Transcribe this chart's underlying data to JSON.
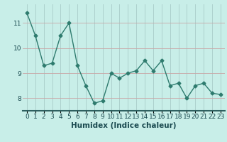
{
  "x": [
    0,
    1,
    2,
    3,
    4,
    5,
    6,
    7,
    8,
    9,
    10,
    11,
    12,
    13,
    14,
    15,
    16,
    17,
    18,
    19,
    20,
    21,
    22,
    23
  ],
  "y": [
    11.4,
    10.5,
    9.3,
    9.4,
    10.5,
    11.0,
    9.3,
    8.5,
    7.8,
    7.9,
    9.0,
    8.8,
    9.0,
    9.1,
    9.5,
    9.1,
    9.5,
    8.5,
    8.6,
    8.0,
    8.5,
    8.6,
    8.2,
    8.15
  ],
  "line_color": "#2e7b6e",
  "marker": "D",
  "marker_size": 2.5,
  "line_width": 1.0,
  "background_color": "#c8eee8",
  "grid_color_h": "#c8a8a8",
  "grid_color_v": "#a8ccc8",
  "xlabel": "Humidex (Indice chaleur)",
  "ylim": [
    7.5,
    11.75
  ],
  "yticks": [
    8,
    9,
    10,
    11
  ],
  "xticks": [
    0,
    1,
    2,
    3,
    4,
    5,
    6,
    7,
    8,
    9,
    10,
    11,
    12,
    13,
    14,
    15,
    16,
    17,
    18,
    19,
    20,
    21,
    22,
    23
  ],
  "xlabel_fontsize": 7.5,
  "tick_fontsize": 6.5,
  "tick_color": "#1a4a50",
  "axis_color": "#2e6060",
  "bottom_bar_color": "#2e6060"
}
